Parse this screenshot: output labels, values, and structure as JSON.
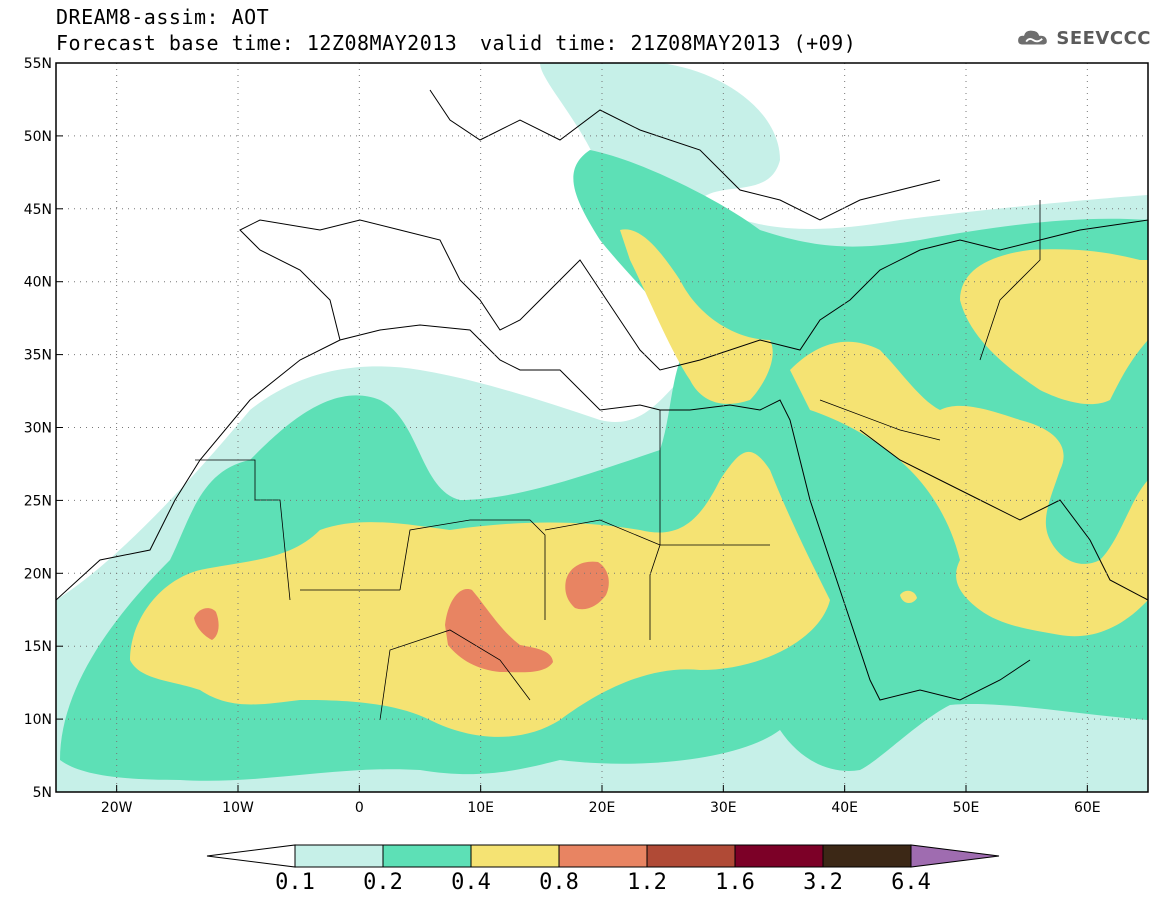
{
  "header": {
    "model_title": "DREAM8-assim: AOT",
    "base_time": "Forecast base time: 12Z08MAY2013",
    "valid_time": "valid time: 21Z08MAY2013 (+09)"
  },
  "logo": {
    "text": "SEEVCCC",
    "icon": "cloud-icon"
  },
  "map": {
    "lon_range": [
      -25,
      65
    ],
    "lat_range": [
      5,
      55
    ],
    "lon_ticks": [
      "20W",
      "10W",
      "0",
      "10E",
      "20E",
      "30E",
      "40E",
      "50E",
      "60E"
    ],
    "lat_ticks": [
      "55N",
      "50N",
      "45N",
      "40N",
      "35N",
      "30N",
      "25N",
      "20N",
      "15N",
      "10N",
      "5N"
    ],
    "gridlines": "dotted"
  },
  "colorbar": {
    "labels": [
      "0.1",
      "0.2",
      "0.4",
      "0.8",
      "1.2",
      "1.6",
      "3.2",
      "6.4"
    ],
    "colors": [
      "#c6f0e8",
      "#5de0b6",
      "#f5e373",
      "#e88462",
      "#b04a36",
      "#7c0027",
      "#3c2816",
      "#9f6cb0"
    ]
  }
}
